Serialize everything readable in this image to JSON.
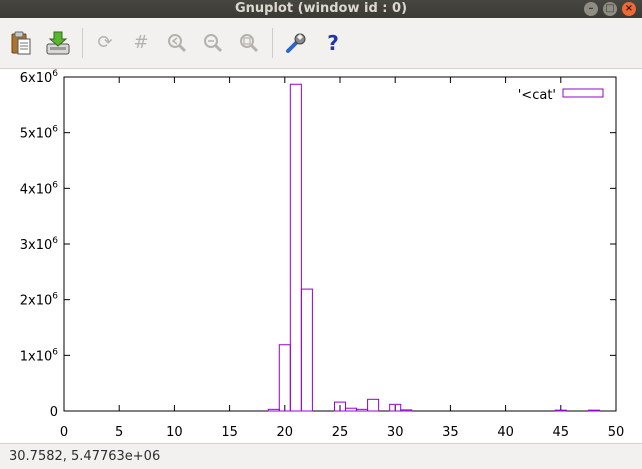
{
  "window": {
    "title": "Gnuplot (window id : 0)"
  },
  "toolbar": {
    "buttons": [
      {
        "name": "copy-to-clipboard-button",
        "icon": "clipboard-icon",
        "enabled": true
      },
      {
        "name": "export-button",
        "icon": "export-icon",
        "enabled": true
      },
      {
        "name": "replot-button",
        "icon": "refresh-icon",
        "enabled": false
      },
      {
        "name": "grid-button",
        "icon": "grid-icon",
        "enabled": false
      },
      {
        "name": "previous-zoom-button",
        "icon": "zoom-back-icon",
        "enabled": false
      },
      {
        "name": "next-zoom-button",
        "icon": "zoom-forward-icon",
        "enabled": false
      },
      {
        "name": "autoscale-button",
        "icon": "zoom-fit-icon",
        "enabled": false
      },
      {
        "name": "settings-button",
        "icon": "wrench-icon",
        "enabled": true
      },
      {
        "name": "help-button",
        "icon": "help-icon",
        "enabled": true
      }
    ]
  },
  "status": {
    "text": "30.7582,  5.47763e+06"
  },
  "colors": {
    "series": "#9400d3"
  },
  "chart_data": {
    "type": "bar",
    "xlim": [
      0,
      50
    ],
    "ylim": [
      0,
      6000000
    ],
    "xticks": [
      "0",
      "5",
      "10",
      "15",
      "20",
      "25",
      "30",
      "35",
      "40",
      "45",
      "50"
    ],
    "xtick_values": [
      0,
      5,
      10,
      15,
      20,
      25,
      30,
      35,
      40,
      45,
      50
    ],
    "yticks": [
      {
        "value": 0,
        "mantissa": "0",
        "exp": ""
      },
      {
        "value": 1000000,
        "mantissa": "1x10",
        "exp": "6"
      },
      {
        "value": 2000000,
        "mantissa": "2x10",
        "exp": "6"
      },
      {
        "value": 3000000,
        "mantissa": "3x10",
        "exp": "6"
      },
      {
        "value": 4000000,
        "mantissa": "4x10",
        "exp": "6"
      },
      {
        "value": 5000000,
        "mantissa": "5x10",
        "exp": "6"
      },
      {
        "value": 6000000,
        "mantissa": "6x10",
        "exp": "6"
      }
    ],
    "legend": {
      "label": "'<cat'",
      "position": "top-right"
    },
    "bar_width": 1,
    "series": [
      {
        "x": [
          19,
          20,
          21,
          22,
          25,
          26,
          27,
          28,
          30,
          31,
          45,
          48
        ],
        "values": [
          30000,
          1190000,
          5870000,
          2190000,
          160000,
          50000,
          30000,
          210000,
          120000,
          20000,
          15000,
          15000
        ]
      }
    ]
  }
}
